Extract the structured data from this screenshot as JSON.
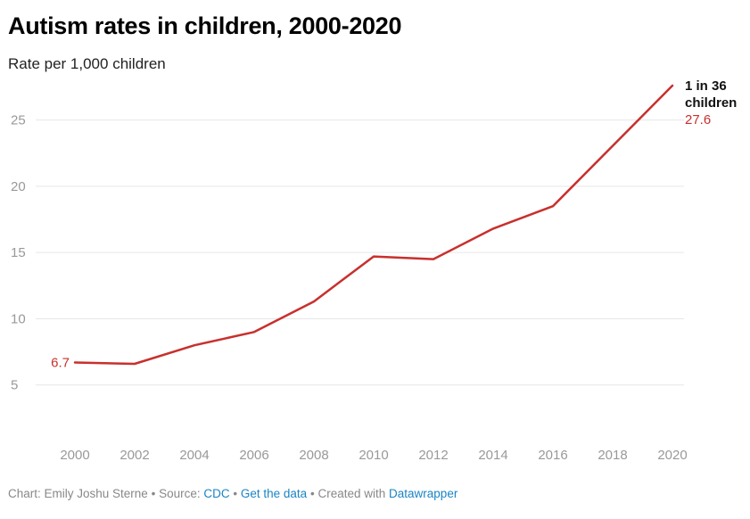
{
  "title": "Autism rates in children, 2000-2020",
  "subtitle": "Rate per 1,000 children",
  "footer": {
    "chart_by": "Chart: Emily Joshu Sterne",
    "source_label": "Source:",
    "source_link": "CDC",
    "get_data": "Get the data",
    "created_with": "Created with",
    "tool": "Datawrapper",
    "separator": "•"
  },
  "annotations": {
    "start_value": "6.7",
    "end_line1": "1 in 36",
    "end_line2": "children",
    "end_value": "27.6"
  },
  "colors": {
    "line": "#c8302d",
    "grid": "#e6e6e6",
    "tick_text": "#999999",
    "annotation_text": "#111111"
  },
  "chart_data": {
    "type": "line",
    "title": "Autism rates in children, 2000-2020",
    "subtitle": "Rate per 1,000 children",
    "xlabel": "",
    "ylabel": "",
    "x": [
      2000,
      2002,
      2004,
      2006,
      2008,
      2010,
      2012,
      2014,
      2016,
      2018,
      2020
    ],
    "x_ticks": [
      "2000",
      "2002",
      "2004",
      "2006",
      "2008",
      "2010",
      "2012",
      "2014",
      "2016",
      "2018",
      "2020"
    ],
    "y_ticks": [
      5,
      10,
      15,
      20,
      25
    ],
    "ylim": [
      0,
      27.6
    ],
    "grid": true,
    "series": [
      {
        "points": [
          [
            2000,
            6.7
          ],
          [
            2002,
            6.6
          ],
          [
            2004,
            8.0
          ],
          [
            2006,
            9.0
          ],
          [
            2008,
            11.3
          ],
          [
            2010,
            14.7
          ],
          [
            2012,
            14.5
          ],
          [
            2014,
            16.8
          ],
          [
            2016,
            18.5
          ],
          [
            2020,
            27.6
          ]
        ]
      }
    ]
  }
}
